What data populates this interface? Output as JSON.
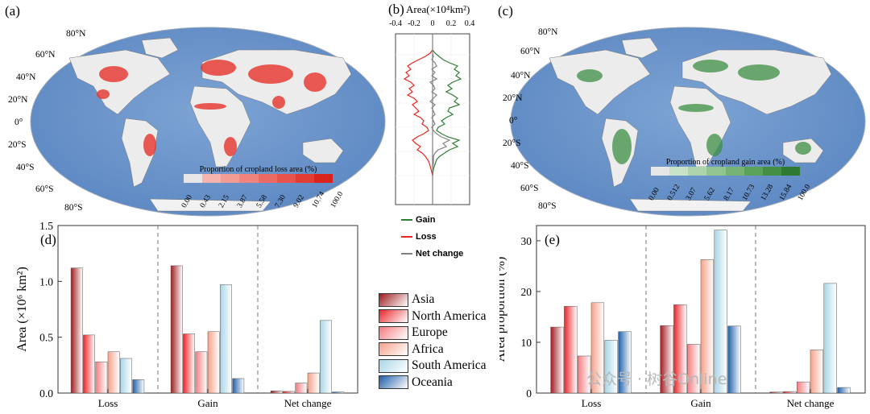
{
  "panels": {
    "a": "(a)",
    "b": "(b)",
    "c": "(c)",
    "d": "(d)",
    "e": "(e)"
  },
  "map_a": {
    "title": "Proportion of cropland loss area (%)",
    "ticks": [
      "0.00",
      "0.43",
      "2.15",
      "3.87",
      "5.58",
      "7.30",
      "9.02",
      "10.74",
      "100.0"
    ],
    "colors": [
      "#e6e6e6",
      "#f6b4ae",
      "#f39b95",
      "#f0837c",
      "#ec6a63",
      "#e8534c",
      "#e23c35",
      "#d9241e"
    ],
    "lat_labels": [
      "80°N",
      "60°N",
      "40°N",
      "20°N",
      "0°",
      "20°S",
      "40°S",
      "60°S",
      "80°S"
    ]
  },
  "map_c": {
    "title": "Proportion of cropland gain area (%)",
    "ticks": [
      "0.00",
      "0.512",
      "3.07",
      "5.62",
      "8.17",
      "10.73",
      "13.28",
      "15.84",
      "100.0"
    ],
    "colors": [
      "#e6e6e6",
      "#c9e3c9",
      "#aed4ad",
      "#92c491",
      "#76b375",
      "#5ba35b",
      "#438f45",
      "#2e7a33"
    ],
    "lat_labels": [
      "80°N",
      "60°N",
      "40°N",
      "20°N",
      "0°",
      "20°S",
      "40°S",
      "60°S",
      "80°S"
    ]
  },
  "profile_b": {
    "title": "Area(×10⁴km²)",
    "xticks": [
      "-0.4",
      "-0.2",
      "0",
      "0.2",
      "0.4"
    ],
    "legend": [
      {
        "name": "Gain",
        "color": "#2e7d32"
      },
      {
        "name": "Loss",
        "color": "#e8261e"
      },
      {
        "name": "Net change",
        "color": "#808080"
      }
    ]
  },
  "chart_data": [
    {
      "type": "bar",
      "panel": "(d)",
      "ylabel": "Area (×10⁶ km²)",
      "ylim": [
        0,
        1.5
      ],
      "yticks": [
        "0.0",
        "0.5",
        "1.0",
        "1.5"
      ],
      "categories": [
        "Loss",
        "Gain",
        "Net change"
      ],
      "series": [
        {
          "name": "Asia",
          "values": [
            1.12,
            1.14,
            0.02
          ]
        },
        {
          "name": "North America",
          "values": [
            0.52,
            0.53,
            0.015
          ]
        },
        {
          "name": "Europe",
          "values": [
            0.28,
            0.37,
            0.09
          ]
        },
        {
          "name": "Africa",
          "values": [
            0.37,
            0.55,
            0.18
          ]
        },
        {
          "name": "South America",
          "values": [
            0.31,
            0.97,
            0.65
          ]
        },
        {
          "name": "Oceania",
          "values": [
            0.12,
            0.13,
            0.01
          ]
        }
      ]
    },
    {
      "type": "bar",
      "panel": "(e)",
      "ylabel": "Area proportion (%)",
      "ylim": [
        0,
        33
      ],
      "yticks": [
        "0",
        "10",
        "20",
        "30"
      ],
      "categories": [
        "Loss",
        "Gain",
        "Net change"
      ],
      "series": [
        {
          "name": "Asia",
          "values": [
            13.0,
            13.3,
            0.2
          ]
        },
        {
          "name": "North America",
          "values": [
            17.1,
            17.4,
            0.3
          ]
        },
        {
          "name": "Europe",
          "values": [
            7.3,
            9.6,
            2.2
          ]
        },
        {
          "name": "Africa",
          "values": [
            17.8,
            26.3,
            8.5
          ]
        },
        {
          "name": "South America",
          "values": [
            10.4,
            32.1,
            21.6
          ]
        },
        {
          "name": "Oceania",
          "values": [
            12.1,
            13.2,
            1.1
          ]
        }
      ]
    }
  ],
  "legend": {
    "items": [
      {
        "name": "Asia",
        "c1": "#9e1b1f",
        "c2": "#ffffff"
      },
      {
        "name": "North America",
        "c1": "#e8262b",
        "c2": "#ffffff"
      },
      {
        "name": "Europe",
        "c1": "#f27c80",
        "c2": "#ffffff"
      },
      {
        "name": "Africa",
        "c1": "#f4a28a",
        "c2": "#ffffff"
      },
      {
        "name": "South America",
        "c1": "#a8d6e6",
        "c2": "#ffffff"
      },
      {
        "name": "Oceania",
        "c1": "#1f5fa8",
        "c2": "#ffffff"
      }
    ]
  },
  "watermark": "公众号 · 树谷Online"
}
